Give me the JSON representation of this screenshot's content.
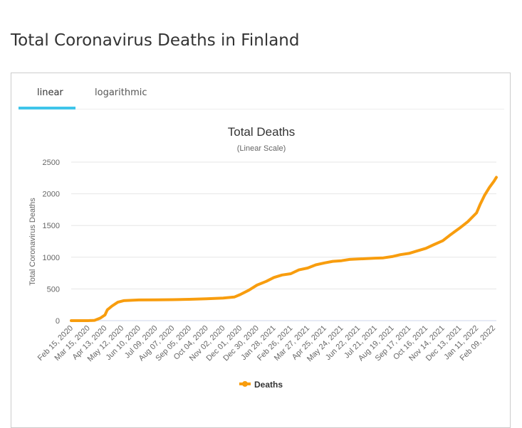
{
  "page": {
    "title": "Total Coronavirus Deaths in Finland"
  },
  "tabs": [
    {
      "label": "linear",
      "active": true
    },
    {
      "label": "logarithmic",
      "active": false
    }
  ],
  "colors": {
    "series": "#f89d0e",
    "tab_accent": "#3fc5ea"
  },
  "chart_data": {
    "type": "line",
    "title": "Total Deaths",
    "subtitle": "(Linear Scale)",
    "ylabel": "Total Coronavirus Deaths",
    "xlabel": "",
    "ylim": [
      0,
      2500
    ],
    "yticks": [
      0,
      500,
      1000,
      1500,
      2000,
      2500
    ],
    "grid": true,
    "legend": {
      "placement": "bottom-center",
      "entries": [
        "Deaths"
      ]
    },
    "x_tick_labels": [
      "Feb 15, 2020",
      "Mar 15, 2020",
      "Apr 13, 2020",
      "May 12, 2020",
      "Jun 10, 2020",
      "Jul 09, 2020",
      "Aug 07, 2020",
      "Sep 05, 2020",
      "Oct 04, 2020",
      "Nov 02, 2020",
      "Dec 01, 2020",
      "Dec 30, 2020",
      "Jan 28, 2021",
      "Feb 26, 2021",
      "Mar 27, 2021",
      "Apr 25, 2021",
      "May 24, 2021",
      "Jun 22, 2021",
      "Jul 21, 2021",
      "Aug 19, 2021",
      "Sep 17, 2021",
      "Oct 16, 2021",
      "Nov 14, 2021",
      "Dec 13, 2021",
      "Jan 11, 2022",
      "Feb 09, 2022"
    ],
    "x_day_range": [
      0,
      730
    ],
    "series": [
      {
        "name": "Deaths",
        "points_day_value": [
          [
            0,
            0
          ],
          [
            29,
            0
          ],
          [
            40,
            5
          ],
          [
            50,
            40
          ],
          [
            58,
            90
          ],
          [
            62,
            170
          ],
          [
            70,
            230
          ],
          [
            80,
            290
          ],
          [
            90,
            315
          ],
          [
            116,
            326
          ],
          [
            145,
            329
          ],
          [
            174,
            331
          ],
          [
            203,
            336
          ],
          [
            232,
            344
          ],
          [
            261,
            357
          ],
          [
            280,
            372
          ],
          [
            290,
            410
          ],
          [
            305,
            480
          ],
          [
            319,
            560
          ],
          [
            335,
            620
          ],
          [
            348,
            680
          ],
          [
            362,
            720
          ],
          [
            377,
            740
          ],
          [
            391,
            800
          ],
          [
            406,
            830
          ],
          [
            420,
            880
          ],
          [
            435,
            910
          ],
          [
            449,
            935
          ],
          [
            464,
            945
          ],
          [
            478,
            965
          ],
          [
            493,
            972
          ],
          [
            507,
            978
          ],
          [
            522,
            985
          ],
          [
            536,
            990
          ],
          [
            551,
            1010
          ],
          [
            565,
            1040
          ],
          [
            580,
            1060
          ],
          [
            594,
            1100
          ],
          [
            609,
            1140
          ],
          [
            623,
            1200
          ],
          [
            638,
            1260
          ],
          [
            652,
            1360
          ],
          [
            667,
            1460
          ],
          [
            681,
            1560
          ],
          [
            696,
            1700
          ],
          [
            702,
            1830
          ],
          [
            710,
            1980
          ],
          [
            718,
            2100
          ],
          [
            726,
            2200
          ],
          [
            730,
            2260
          ]
        ]
      }
    ]
  }
}
